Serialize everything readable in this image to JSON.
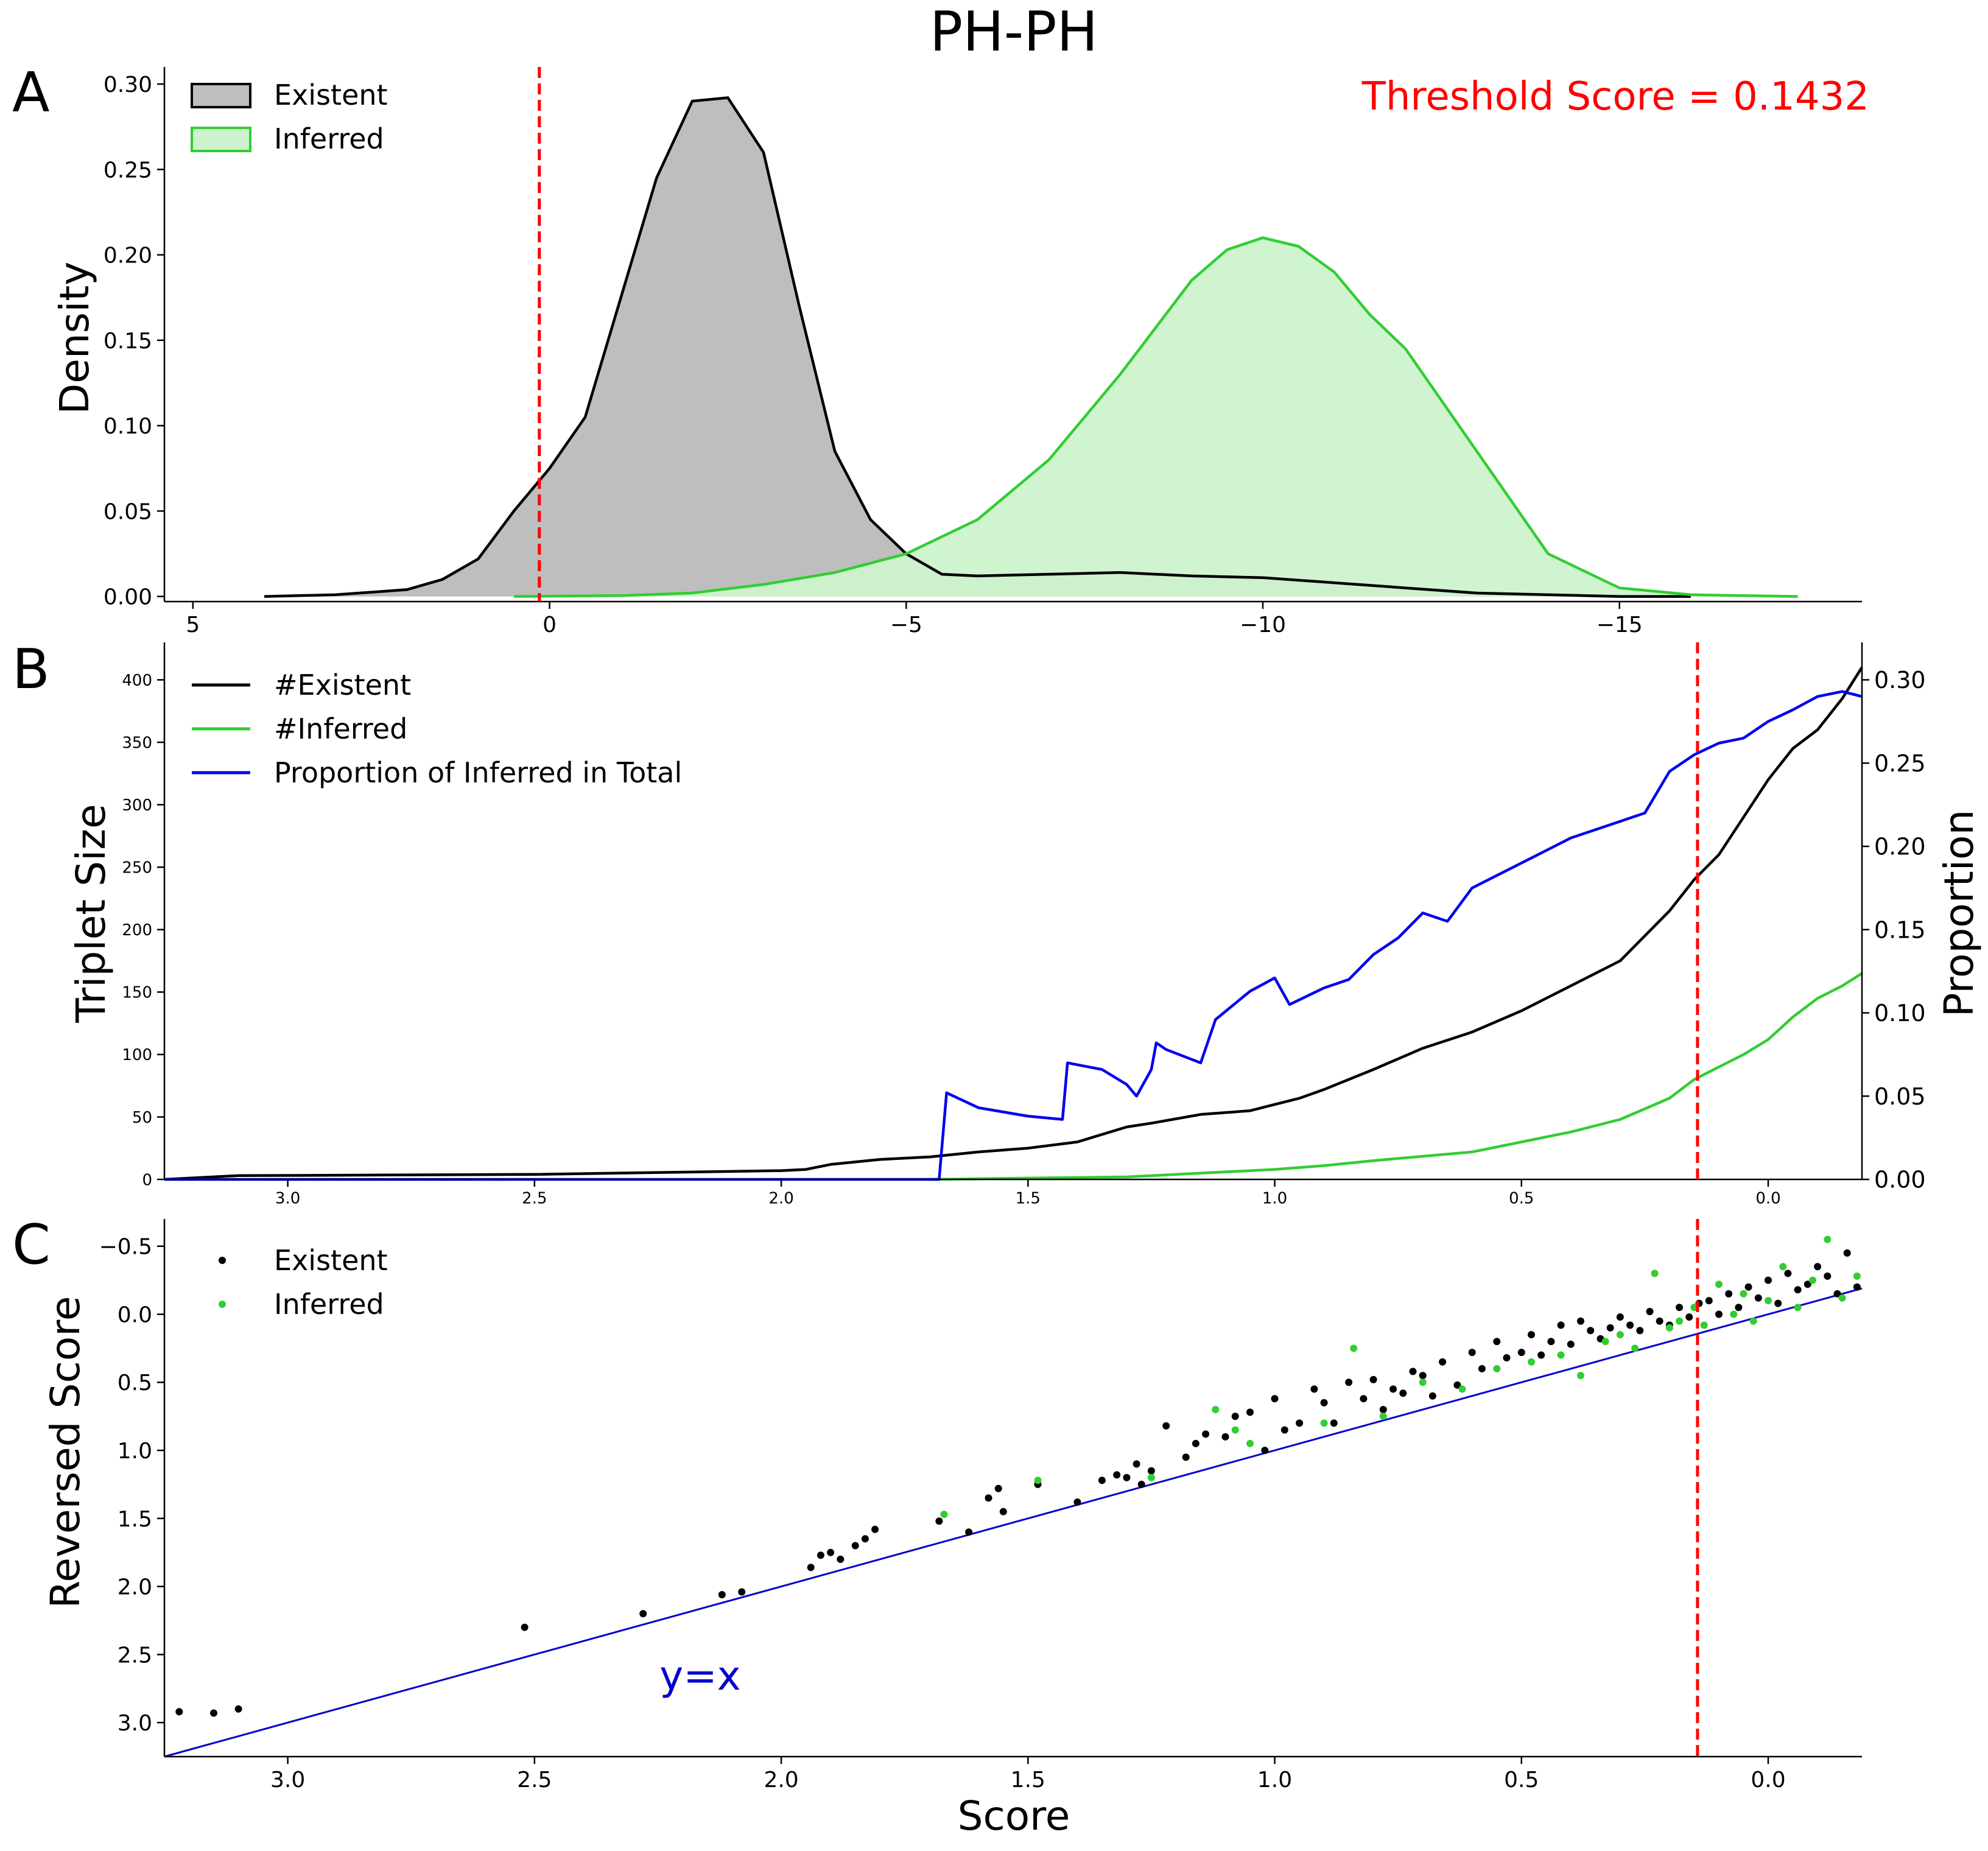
{
  "figure": {
    "title": "PH-PH",
    "colors": {
      "existent": "#000000",
      "inferred": "#32cd32",
      "proportion": "#0000ee",
      "threshold": "#ff0000",
      "identity": "#0000cc"
    }
  },
  "chart_data": [
    {
      "panel": "A",
      "type": "area",
      "title": "",
      "ylabel": "Density",
      "xlabel": "",
      "xlim": [
        5.4,
        -18.4
      ],
      "ylim": [
        -0.003,
        0.31
      ],
      "x_inverted": true,
      "xticks": [
        "5",
        "0",
        "−5",
        "−10",
        "−15"
      ],
      "yticks": [
        "0.00",
        "0.05",
        "0.10",
        "0.15",
        "0.20",
        "0.25",
        "0.30"
      ],
      "annotation": "Threshold Score = 0.1432",
      "threshold_x": 0.1432,
      "legend": {
        "position": "top-left",
        "entries": [
          "Existent",
          "Inferred"
        ]
      },
      "series": [
        {
          "name": "Existent",
          "color": "#000000",
          "fill": "#bebebe",
          "x": [
            4.0,
            3.0,
            2.0,
            1.5,
            1.0,
            0.5,
            0.0,
            -0.5,
            -1.0,
            -1.5,
            -2.0,
            -2.5,
            -3.0,
            -3.5,
            -4.0,
            -4.5,
            -5.0,
            -5.5,
            -6.0,
            -7.0,
            -8.0,
            -9.0,
            -10.0,
            -11.0,
            -12.0,
            -13.0,
            -14.0,
            -15.0,
            -16.0
          ],
          "y": [
            0.0,
            0.001,
            0.004,
            0.01,
            0.022,
            0.05,
            0.075,
            0.105,
            0.175,
            0.245,
            0.29,
            0.292,
            0.26,
            0.17,
            0.085,
            0.045,
            0.025,
            0.013,
            0.012,
            0.013,
            0.014,
            0.012,
            0.011,
            0.008,
            0.005,
            0.002,
            0.001,
            0.0,
            0.0
          ]
        },
        {
          "name": "Inferred",
          "color": "#32cd32",
          "fill": "#cdf2cd",
          "x": [
            0.5,
            -1.0,
            -2.0,
            -3.0,
            -4.0,
            -5.0,
            -6.0,
            -7.0,
            -8.0,
            -9.0,
            -9.5,
            -10.0,
            -10.5,
            -11.0,
            -11.5,
            -12.0,
            -13.0,
            -14.0,
            -15.0,
            -16.0,
            -17.5
          ],
          "y": [
            0.0,
            0.0005,
            0.002,
            0.007,
            0.014,
            0.025,
            0.045,
            0.08,
            0.13,
            0.185,
            0.203,
            0.21,
            0.205,
            0.19,
            0.165,
            0.145,
            0.085,
            0.025,
            0.005,
            0.001,
            0.0
          ]
        }
      ]
    },
    {
      "panel": "B",
      "type": "line",
      "title": "",
      "ylabel": "Triplet Size",
      "ylabel_right": "Proportion",
      "xlabel": "",
      "xlim": [
        3.25,
        -0.19
      ],
      "x_inverted": true,
      "ylim": [
        0,
        430
      ],
      "ylim_right": [
        0,
        0.3225
      ],
      "xticks": [
        "3.0",
        "2.5",
        "2.0",
        "1.5",
        "1.0",
        "0.5",
        "0.0"
      ],
      "yticks": [
        "0",
        "50",
        "100",
        "150",
        "200",
        "250",
        "300",
        "350",
        "400"
      ],
      "yticks_right": [
        "0.00",
        "0.05",
        "0.10",
        "0.15",
        "0.20",
        "0.25",
        "0.30"
      ],
      "threshold_x": 0.1432,
      "legend": {
        "position": "top-left",
        "entries": [
          "#Existent",
          "#Inferred",
          "Proportion of Inferred in Total"
        ]
      },
      "series": [
        {
          "name": "#Existent",
          "axis": "left",
          "color": "#000000",
          "x": [
            3.25,
            3.1,
            2.5,
            2.0,
            1.95,
            1.9,
            1.8,
            1.7,
            1.6,
            1.5,
            1.4,
            1.3,
            1.25,
            1.15,
            1.05,
            1.0,
            0.95,
            0.9,
            0.8,
            0.7,
            0.6,
            0.5,
            0.4,
            0.3,
            0.2,
            0.15,
            0.1,
            0.05,
            0.0,
            -0.05,
            -0.1,
            -0.15,
            -0.19
          ],
          "y": [
            0,
            3,
            4,
            7,
            8,
            12,
            16,
            18,
            22,
            25,
            30,
            42,
            45,
            52,
            55,
            60,
            65,
            72,
            88,
            105,
            118,
            135,
            155,
            175,
            215,
            240,
            260,
            290,
            320,
            345,
            360,
            385,
            410
          ]
        },
        {
          "name": "#Inferred",
          "axis": "left",
          "color": "#32cd32",
          "x": [
            1.7,
            1.5,
            1.3,
            1.2,
            1.0,
            0.9,
            0.8,
            0.6,
            0.5,
            0.4,
            0.3,
            0.2,
            0.15,
            0.1,
            0.05,
            0.0,
            -0.05,
            -0.1,
            -0.15,
            -0.19
          ],
          "y": [
            0,
            1,
            2,
            4,
            8,
            11,
            15,
            22,
            30,
            38,
            48,
            65,
            80,
            90,
            100,
            112,
            130,
            145,
            155,
            165
          ]
        },
        {
          "name": "Proportion of Inferred in Total",
          "axis": "right",
          "color": "#0000ee",
          "x": [
            3.25,
            1.68,
            1.665,
            1.6,
            1.5,
            1.43,
            1.42,
            1.35,
            1.3,
            1.28,
            1.25,
            1.24,
            1.22,
            1.15,
            1.12,
            1.05,
            1.0,
            0.97,
            0.9,
            0.85,
            0.8,
            0.75,
            0.7,
            0.65,
            0.6,
            0.5,
            0.4,
            0.3,
            0.25,
            0.2,
            0.15,
            0.1,
            0.05,
            0.0,
            -0.05,
            -0.1,
            -0.15,
            -0.19
          ],
          "y": [
            0.0,
            0.0,
            0.052,
            0.043,
            0.038,
            0.036,
            0.07,
            0.066,
            0.057,
            0.05,
            0.066,
            0.082,
            0.078,
            0.07,
            0.096,
            0.113,
            0.121,
            0.105,
            0.115,
            0.12,
            0.135,
            0.145,
            0.16,
            0.155,
            0.175,
            0.19,
            0.205,
            0.215,
            0.22,
            0.245,
            0.255,
            0.262,
            0.265,
            0.275,
            0.282,
            0.29,
            0.293,
            0.29
          ]
        }
      ]
    },
    {
      "panel": "C",
      "type": "scatter",
      "title": "",
      "xlabel": "Score",
      "ylabel": "Reversed Score",
      "xlim": [
        3.25,
        -0.19
      ],
      "ylim": [
        3.25,
        -0.7
      ],
      "x_inverted": true,
      "y_inverted": true,
      "xticks": [
        "3.0",
        "2.5",
        "2.0",
        "1.5",
        "1.0",
        "0.5",
        "0.0"
      ],
      "yticks": [
        "−0.5",
        "0.0",
        "0.5",
        "1.0",
        "1.5",
        "2.0",
        "2.5",
        "3.0"
      ],
      "threshold_x": 0.1432,
      "identity_line": {
        "label": "y=x",
        "color": "#0000cc"
      },
      "legend": {
        "position": "top-left",
        "entries": [
          "Existent",
          "Inferred"
        ]
      },
      "series": [
        {
          "name": "Existent",
          "color": "#000000",
          "x": [
            3.22,
            3.15,
            3.1,
            2.52,
            2.28,
            2.12,
            2.08,
            1.94,
            1.92,
            1.9,
            1.88,
            1.85,
            1.83,
            1.81,
            1.68,
            1.62,
            1.58,
            1.56,
            1.55,
            1.48,
            1.4,
            1.35,
            1.32,
            1.3,
            1.28,
            1.27,
            1.25,
            1.22,
            1.18,
            1.16,
            1.14,
            1.1,
            1.08,
            1.05,
            1.02,
            1.0,
            0.98,
            0.95,
            0.92,
            0.9,
            0.88,
            0.85,
            0.82,
            0.8,
            0.78,
            0.76,
            0.74,
            0.72,
            0.7,
            0.68,
            0.66,
            0.63,
            0.6,
            0.58,
            0.55,
            0.53,
            0.5,
            0.48,
            0.46,
            0.44,
            0.42,
            0.4,
            0.38,
            0.36,
            0.34,
            0.32,
            0.3,
            0.28,
            0.26,
            0.24,
            0.22,
            0.2,
            0.18,
            0.16,
            0.14,
            0.12,
            0.1,
            0.08,
            0.06,
            0.04,
            0.02,
            0.0,
            -0.02,
            -0.04,
            -0.06,
            -0.08,
            -0.1,
            -0.12,
            -0.14,
            -0.16,
            -0.18
          ],
          "y": [
            2.92,
            2.93,
            2.9,
            2.3,
            2.2,
            2.06,
            2.04,
            1.86,
            1.77,
            1.75,
            1.8,
            1.7,
            1.65,
            1.58,
            1.52,
            1.6,
            1.35,
            1.28,
            1.45,
            1.25,
            1.38,
            1.22,
            1.18,
            1.2,
            1.1,
            1.25,
            1.15,
            0.82,
            1.05,
            0.95,
            0.88,
            0.9,
            0.75,
            0.72,
            1.0,
            0.62,
            0.85,
            0.8,
            0.55,
            0.65,
            0.8,
            0.5,
            0.62,
            0.48,
            0.7,
            0.55,
            0.58,
            0.42,
            0.45,
            0.6,
            0.35,
            0.52,
            0.28,
            0.4,
            0.2,
            0.32,
            0.28,
            0.15,
            0.3,
            0.2,
            0.08,
            0.22,
            0.05,
            0.12,
            0.18,
            0.1,
            0.02,
            0.08,
            0.12,
            -0.02,
            0.05,
            0.08,
            -0.05,
            0.02,
            -0.08,
            -0.1,
            0.0,
            -0.15,
            -0.05,
            -0.2,
            -0.12,
            -0.25,
            -0.08,
            -0.3,
            -0.18,
            -0.22,
            -0.35,
            -0.28,
            -0.15,
            -0.45,
            -0.2
          ]
        },
        {
          "name": "Inferred",
          "color": "#32cd32",
          "x": [
            1.67,
            1.48,
            1.25,
            1.12,
            1.08,
            1.05,
            0.9,
            0.84,
            0.78,
            0.7,
            0.62,
            0.55,
            0.48,
            0.42,
            0.38,
            0.33,
            0.3,
            0.27,
            0.23,
            0.2,
            0.18,
            0.15,
            0.13,
            0.1,
            0.07,
            0.05,
            0.03,
            0.0,
            -0.03,
            -0.06,
            -0.09,
            -0.12,
            -0.15,
            -0.18
          ],
          "y": [
            1.47,
            1.22,
            1.2,
            0.7,
            0.85,
            0.95,
            0.8,
            0.25,
            0.75,
            0.5,
            0.55,
            0.4,
            0.35,
            0.3,
            0.45,
            0.2,
            0.15,
            0.25,
            -0.3,
            0.1,
            0.05,
            -0.05,
            0.08,
            -0.22,
            0.0,
            -0.15,
            0.05,
            -0.1,
            -0.35,
            -0.05,
            -0.25,
            -0.55,
            -0.12,
            -0.28
          ]
        }
      ]
    }
  ]
}
